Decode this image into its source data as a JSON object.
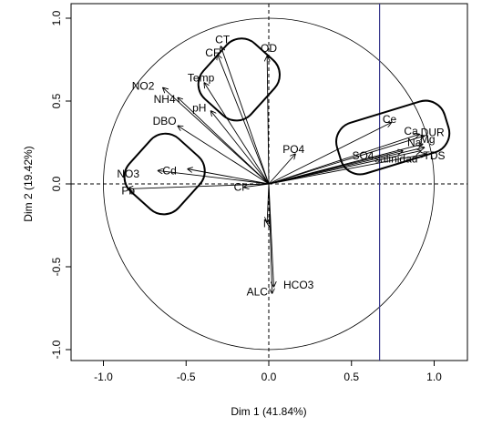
{
  "chart_data": {
    "type": "scatter",
    "title": "",
    "xlabel": "Dim 1 (41.84%)",
    "ylabel": "Dim 2 (19.42%)",
    "xlim": [
      -1.0,
      1.0
    ],
    "ylim": [
      -1.0,
      1.0
    ],
    "x_ticks": [
      {
        "v": -1.0,
        "label": "-1.0"
      },
      {
        "v": -0.5,
        "label": "-0.5"
      },
      {
        "v": 0.0,
        "label": "0.0"
      },
      {
        "v": 0.5,
        "label": "0.5"
      },
      {
        "v": 1.0,
        "label": "1.0"
      }
    ],
    "y_ticks": [
      {
        "v": -1.0,
        "label": "-1.0"
      },
      {
        "v": -0.5,
        "label": "-0.5"
      },
      {
        "v": 0.0,
        "label": "0.0"
      },
      {
        "v": 0.5,
        "label": "0.5"
      },
      {
        "v": 1.0,
        "label": "1.0"
      }
    ],
    "grid": false,
    "unit_circle": true,
    "reference_lines": {
      "x": 0,
      "y": 0,
      "style": "dashed"
    },
    "vertical_marker": {
      "x": 0.67,
      "color": "#3b3b8f"
    },
    "variables": [
      {
        "name": "CT",
        "x": -0.29,
        "y": 0.83
      },
      {
        "name": "CF",
        "x": -0.31,
        "y": 0.78
      },
      {
        "name": "OD",
        "x": -0.01,
        "y": 0.77
      },
      {
        "name": "Temp",
        "x": -0.39,
        "y": 0.61
      },
      {
        "name": "NO2",
        "x": -0.64,
        "y": 0.58
      },
      {
        "name": "NH4",
        "x": -0.55,
        "y": 0.52
      },
      {
        "name": "pH",
        "x": -0.35,
        "y": 0.44
      },
      {
        "name": "DBO",
        "x": -0.55,
        "y": 0.35
      },
      {
        "name": "NO3",
        "x": -0.67,
        "y": 0.08
      },
      {
        "name": "Cd",
        "x": -0.49,
        "y": 0.09
      },
      {
        "name": "Pb",
        "x": -0.85,
        "y": -0.03
      },
      {
        "name": "Cl",
        "x": -0.15,
        "y": -0.02
      },
      {
        "name": "PO4",
        "x": 0.16,
        "y": 0.18
      },
      {
        "name": "Ce",
        "x": 0.74,
        "y": 0.37
      },
      {
        "name": "Ca",
        "x": 0.91,
        "y": 0.3
      },
      {
        "name": "DUR",
        "x": 0.94,
        "y": 0.29
      },
      {
        "name": "Na",
        "x": 0.93,
        "y": 0.24
      },
      {
        "name": "Mg",
        "x": 0.94,
        "y": 0.22
      },
      {
        "name": "SO4",
        "x": 0.81,
        "y": 0.2
      },
      {
        "name": "salinidad",
        "x": 0.92,
        "y": 0.2
      },
      {
        "name": "TDS",
        "x": 0.95,
        "y": 0.18
      },
      {
        "name": "N",
        "x": -0.01,
        "y": -0.23
      },
      {
        "name": "ALC",
        "x": 0.02,
        "y": -0.66
      },
      {
        "name": "HCO3",
        "x": 0.03,
        "y": -0.62
      }
    ],
    "labels": [
      {
        "text": "CT",
        "x": -0.28,
        "y": 0.87
      },
      {
        "text": "CF",
        "x": -0.34,
        "y": 0.79
      },
      {
        "text": "OD",
        "x": 0.0,
        "y": 0.82
      },
      {
        "text": "Temp",
        "x": -0.41,
        "y": 0.64
      },
      {
        "text": "NO2",
        "x": -0.76,
        "y": 0.59
      },
      {
        "text": "NH4",
        "x": -0.63,
        "y": 0.51
      },
      {
        "text": "pH",
        "x": -0.42,
        "y": 0.46
      },
      {
        "text": "DBO",
        "x": -0.63,
        "y": 0.38
      },
      {
        "text": "NO3",
        "x": -0.85,
        "y": 0.06
      },
      {
        "text": "Cd",
        "x": -0.6,
        "y": 0.08
      },
      {
        "text": "Pb",
        "x": -0.85,
        "y": -0.04
      },
      {
        "text": "Cl",
        "x": -0.18,
        "y": -0.02
      },
      {
        "text": "PO4",
        "x": 0.15,
        "y": 0.21
      },
      {
        "text": "Ce",
        "x": 0.73,
        "y": 0.39
      },
      {
        "text": "Ca",
        "x": 0.86,
        "y": 0.32
      },
      {
        "text": "DUR",
        "x": 0.99,
        "y": 0.31
      },
      {
        "text": "Na",
        "x": 0.88,
        "y": 0.25
      },
      {
        "text": "Mg",
        "x": 0.96,
        "y": 0.27
      },
      {
        "text": "SO4",
        "x": 0.57,
        "y": 0.17
      },
      {
        "text": "salinidad",
        "x": 0.77,
        "y": 0.15
      },
      {
        "text": "TDS",
        "x": 1.0,
        "y": 0.17
      },
      {
        "text": "N",
        "x": -0.01,
        "y": -0.24
      },
      {
        "text": "ALC",
        "x": -0.07,
        "y": -0.65
      },
      {
        "text": "HCO3",
        "x": 0.18,
        "y": -0.61
      }
    ],
    "groups": [
      {
        "name": "group-top",
        "cx": -0.18,
        "cy": 0.63,
        "w": 0.39,
        "h": 0.45,
        "rot": 42
      },
      {
        "name": "group-left",
        "cx": -0.63,
        "cy": 0.06,
        "w": 0.4,
        "h": 0.43,
        "rot": 42
      },
      {
        "name": "group-right",
        "cx": 0.75,
        "cy": 0.28,
        "w": 0.68,
        "h": 0.32,
        "rot": -17
      }
    ]
  }
}
